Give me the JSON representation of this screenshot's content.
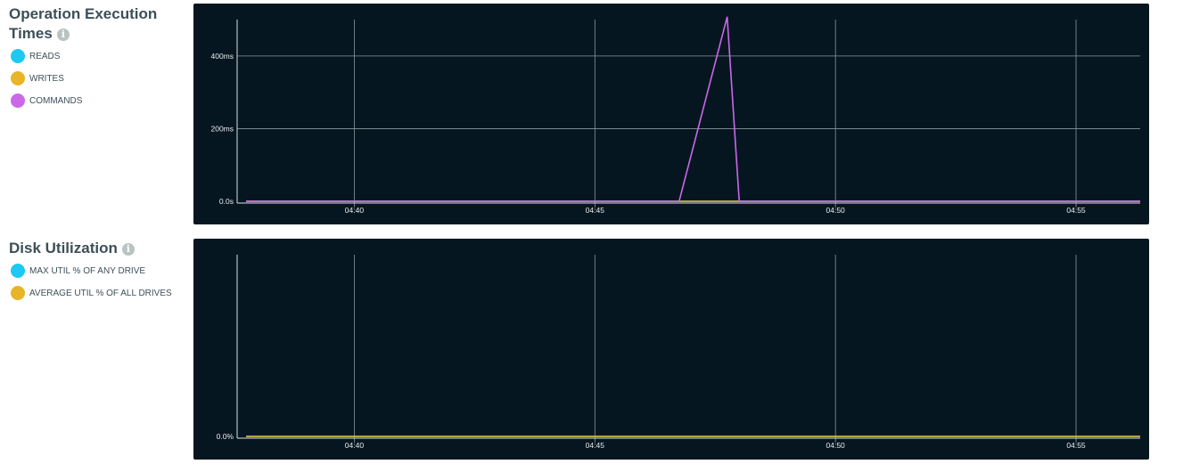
{
  "chart_data": [
    {
      "type": "line",
      "title": "Operation Execution Times",
      "x_ticks": [
        "04:40",
        "04:45",
        "04:50",
        "04:55"
      ],
      "y_ticks": [
        {
          "value": 0,
          "label": "0.0s"
        },
        {
          "value": 200,
          "label": "200ms"
        },
        {
          "value": 400,
          "label": "400ms"
        }
      ],
      "xlim": [
        "04:37:45",
        "04:56:20"
      ],
      "ylim": [
        0,
        510
      ],
      "grid": true,
      "series": [
        {
          "name": "READS",
          "color": "#1dc9f1",
          "points": [
            [
              "04:37:45",
              0
            ],
            [
              "04:56:20",
              0
            ]
          ]
        },
        {
          "name": "WRITES",
          "color": "#e8b428",
          "points": [
            [
              "04:37:45",
              0
            ],
            [
              "04:56:20",
              0
            ]
          ]
        },
        {
          "name": "COMMANDS",
          "color": "#cb68e8",
          "points": [
            [
              "04:37:45",
              0
            ],
            [
              "04:46:45",
              0
            ],
            [
              "04:47:45",
              508
            ],
            [
              "04:48:00",
              0
            ],
            [
              "04:56:20",
              0
            ]
          ]
        }
      ]
    },
    {
      "type": "line",
      "title": "Disk Utilization",
      "x_ticks": [
        "04:40",
        "04:45",
        "04:50",
        "04:55"
      ],
      "y_ticks": [
        {
          "value": 0,
          "label": "0.0%"
        }
      ],
      "xlim": [
        "04:37:45",
        "04:56:20"
      ],
      "ylim": [
        0,
        1
      ],
      "grid": true,
      "series": [
        {
          "name": "MAX UTIL % OF ANY DRIVE",
          "color": "#1dc9f1",
          "points": [
            [
              "04:37:45",
              0
            ],
            [
              "04:56:20",
              0
            ]
          ]
        },
        {
          "name": "AVERAGE UTIL % OF ALL DRIVES",
          "color": "#e8b428",
          "points": [
            [
              "04:37:45",
              0
            ],
            [
              "04:56:20",
              0
            ]
          ]
        }
      ]
    }
  ]
}
